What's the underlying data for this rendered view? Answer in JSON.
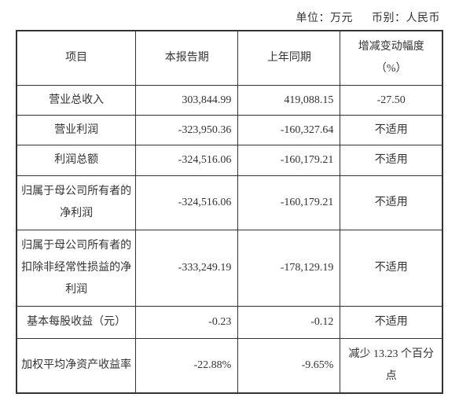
{
  "unit": {
    "left": "单位：万元",
    "right": "币别：人民币"
  },
  "headers": {
    "item": "项目",
    "current": "本报告期",
    "prior": "上年同期",
    "change_l1": "增减变动幅度",
    "change_l2": "（%）"
  },
  "rows": [
    {
      "label": "营业总收入",
      "current": "303,844.99",
      "prior": "419,088.15",
      "change": "-27.50",
      "change_is_num": true
    },
    {
      "label": "营业利润",
      "current": "-323,950.36",
      "prior": "-160,327.64",
      "change": "不适用",
      "change_is_num": false
    },
    {
      "label": "利润总额",
      "current": "-324,516.06",
      "prior": "-160,179.21",
      "change": "不适用",
      "change_is_num": false
    },
    {
      "label": "归属于母公司所有者的净利润",
      "current": "-324,516.06",
      "prior": "-160,179.21",
      "change": "不适用",
      "change_is_num": false,
      "multi": true
    },
    {
      "label": "归属于母公司所有者的扣除非经常性损益的净利润",
      "current": "-333,249.19",
      "prior": "-178,129.19",
      "change": "不适用",
      "change_is_num": false,
      "multi": true
    },
    {
      "label": "基本每股收益（元）",
      "current": "-0.23",
      "prior": "-0.12",
      "change": "不适用",
      "change_is_num": false,
      "multi": true
    },
    {
      "label": "加权平均净资产收益率",
      "current": "-22.88%",
      "prior": "-9.65%",
      "change": "减少 13.23 个百分点",
      "change_is_num": false,
      "multi": true
    }
  ],
  "colors": {
    "border": "#333333",
    "text": "#333333",
    "background": "#ffffff"
  }
}
